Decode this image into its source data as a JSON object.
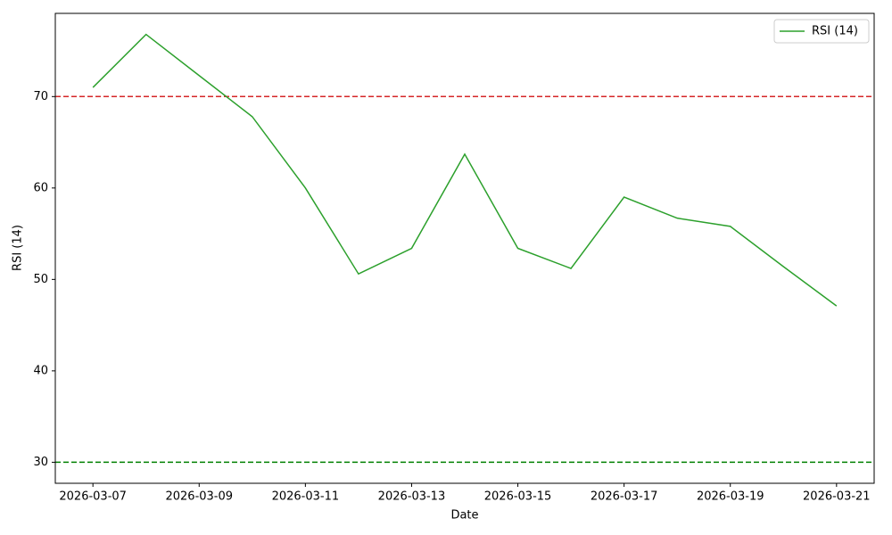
{
  "chart_data": {
    "type": "line",
    "x_label": "Date",
    "y_label": "RSI (14)",
    "x": [
      "2026-03-07",
      "2026-03-08",
      "2026-03-09",
      "2026-03-10",
      "2026-03-11",
      "2026-03-12",
      "2026-03-13",
      "2026-03-14",
      "2026-03-15",
      "2026-03-16",
      "2026-03-17",
      "2026-03-18",
      "2026-03-19",
      "2026-03-20",
      "2026-03-21"
    ],
    "series": [
      {
        "name": "RSI (14)",
        "color": "#2ca02c",
        "values": [
          71.0,
          76.8,
          72.3,
          67.8,
          60.0,
          50.6,
          53.4,
          63.7,
          53.4,
          51.2,
          59.0,
          56.7,
          55.8,
          51.4,
          47.1
        ]
      }
    ],
    "reference_lines": [
      {
        "value": 70,
        "color": "#d62728"
      },
      {
        "value": 30,
        "color": "#008000"
      }
    ],
    "xlim": [
      "2026-03-06T07:00",
      "2026-03-21T17:00"
    ],
    "xticks": [
      "2026-03-07",
      "2026-03-09",
      "2026-03-11",
      "2026-03-13",
      "2026-03-15",
      "2026-03-17",
      "2026-03-19",
      "2026-03-21"
    ],
    "ylim": [
      27.7,
      79.1
    ],
    "yticks": [
      30,
      40,
      50,
      60,
      70
    ],
    "grid": false,
    "legend": "upper right"
  }
}
